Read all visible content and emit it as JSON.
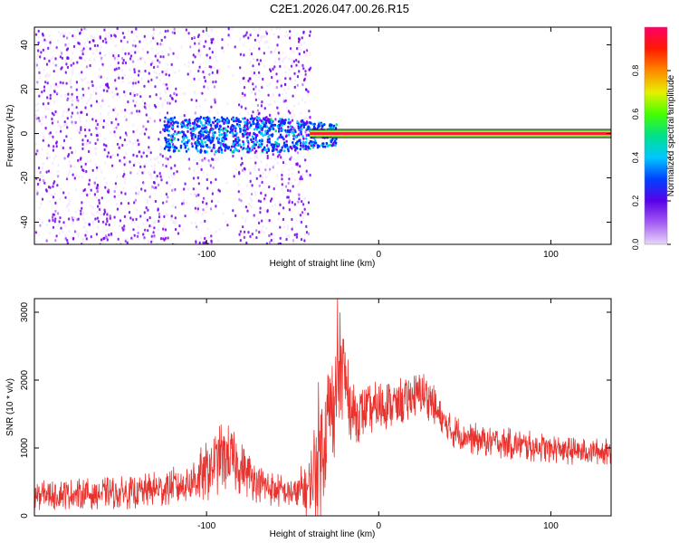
{
  "page": {
    "title": "C2E1.2026.047.00.26.R15"
  },
  "chart_data": [
    {
      "type": "heatmap",
      "title": "C2E1.2026.047.00.26.R15",
      "xlabel": "Height of straight line (km)",
      "ylabel": "Frequency (Hz)",
      "xlim": [
        -200,
        135
      ],
      "ylim": [
        -50,
        48
      ],
      "x_ticks": [
        -100,
        0,
        100
      ],
      "y_ticks": [
        -40,
        -20,
        0,
        20,
        40
      ],
      "colorbar": {
        "label": "Normalized spectral amplitude",
        "range": [
          0,
          1
        ],
        "ticks": [
          0.0,
          0.2,
          0.4,
          0.6,
          0.8
        ],
        "colors": [
          "#e9d6fb",
          "#7a00f0",
          "#0033ff",
          "#00c8ff",
          "#00e070",
          "#44ff00",
          "#ffee00",
          "#ff7700",
          "#ff1100",
          "#ff0066"
        ]
      },
      "regions": [
        {
          "x_range": [
            -200,
            -40
          ],
          "content": "scattered broadband noise across all frequencies"
        },
        {
          "x_range": [
            -125,
            -40
          ],
          "content": "noise cluster centered near 0 Hz"
        },
        {
          "x_range": [
            -40,
            135
          ],
          "content": "steady line at 0 Hz"
        }
      ],
      "line_y": 0
    },
    {
      "type": "line",
      "xlabel": "Height of straight line (km)",
      "ylabel": "SNR (10 * v/v)",
      "xlim": [
        -200,
        135
      ],
      "ylim": [
        0,
        3200
      ],
      "x_ticks": [
        -100,
        0,
        100
      ],
      "y_ticks": [
        0,
        1000,
        2000,
        3000
      ],
      "color": "#e8322e",
      "x": [
        -200,
        -180,
        -160,
        -140,
        -120,
        -110,
        -100,
        -90,
        -80,
        -70,
        -60,
        -50,
        -40,
        -35,
        -30,
        -25,
        -22,
        -20,
        -15,
        -10,
        -5,
        0,
        10,
        20,
        25,
        30,
        35,
        40,
        50,
        60,
        70,
        80,
        90,
        100,
        110,
        120,
        135
      ],
      "values": [
        300,
        320,
        330,
        350,
        420,
        500,
        650,
        900,
        700,
        480,
        380,
        330,
        400,
        900,
        1400,
        1700,
        2300,
        2000,
        1500,
        1500,
        1550,
        1600,
        1650,
        1750,
        1800,
        1720,
        1450,
        1280,
        1180,
        1100,
        1080,
        1050,
        1020,
        1000,
        960,
        950,
        950
      ],
      "spread": [
        220,
        230,
        240,
        250,
        300,
        350,
        450,
        550,
        400,
        300,
        260,
        260,
        500,
        1100,
        900,
        800,
        800,
        700,
        450,
        400,
        400,
        400,
        380,
        360,
        350,
        330,
        300,
        260,
        250,
        240,
        240,
        240,
        230,
        220,
        210,
        200,
        200
      ]
    }
  ]
}
